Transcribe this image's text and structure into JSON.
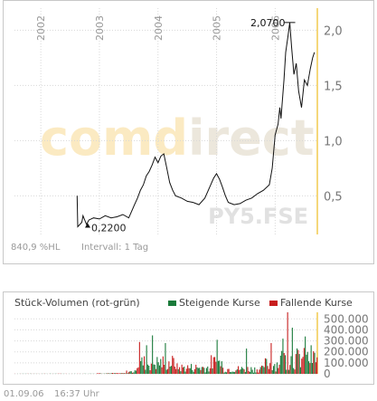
{
  "chart_data": [
    {
      "type": "line",
      "symbol_watermark": "PY5.FSE",
      "brand_watermark": "comdirect",
      "x_ticks": [
        "2002",
        "2003",
        "2004",
        "2005",
        "2006"
      ],
      "y_ticks": [
        0.5,
        1.0,
        1.5,
        2.0
      ],
      "y_tick_labels": [
        "0,5",
        "1,0",
        "1,5",
        "2,0"
      ],
      "ylim": [
        0.15,
        2.2
      ],
      "xlim": [
        2001.55,
        2006.72
      ],
      "min_label": "0,2200",
      "max_label": "2,0700",
      "min_point": {
        "x": 2002.8,
        "y": 0.22
      },
      "max_point": {
        "x": 2006.25,
        "y": 2.07
      },
      "series": [
        {
          "x": [
            2002.62,
            2002.63,
            2002.7,
            2002.72,
            2002.78,
            2002.82,
            2002.9,
            2003.0,
            2003.1,
            2003.2,
            2003.3,
            2003.4,
            2003.5,
            2003.55,
            2003.6,
            2003.65,
            2003.7,
            2003.75,
            2003.8,
            2003.85,
            2003.9,
            2003.95,
            2004.0,
            2004.05,
            2004.1,
            2004.15,
            2004.2,
            2004.25,
            2004.3,
            2004.4,
            2004.5,
            2004.6,
            2004.7,
            2004.8,
            2004.9,
            2004.95,
            2005.0,
            2005.05,
            2005.1,
            2005.15,
            2005.2,
            2005.3,
            2005.4,
            2005.5,
            2005.6,
            2005.7,
            2005.8,
            2005.9,
            2005.95,
            2006.0,
            2006.05,
            2006.08,
            2006.1,
            2006.15,
            2006.18,
            2006.22,
            2006.25,
            2006.28,
            2006.32,
            2006.36,
            2006.4,
            2006.45,
            2006.5,
            2006.55,
            2006.6,
            2006.64,
            2006.67
          ],
          "y": [
            0.5,
            0.22,
            0.26,
            0.32,
            0.24,
            0.28,
            0.3,
            0.29,
            0.32,
            0.3,
            0.31,
            0.33,
            0.3,
            0.36,
            0.42,
            0.48,
            0.55,
            0.6,
            0.68,
            0.72,
            0.78,
            0.85,
            0.8,
            0.86,
            0.88,
            0.75,
            0.62,
            0.55,
            0.5,
            0.48,
            0.45,
            0.44,
            0.42,
            0.48,
            0.6,
            0.66,
            0.7,
            0.65,
            0.58,
            0.5,
            0.44,
            0.42,
            0.43,
            0.46,
            0.48,
            0.52,
            0.55,
            0.6,
            0.75,
            1.05,
            1.15,
            1.3,
            1.2,
            1.55,
            1.8,
            1.95,
            2.07,
            1.85,
            1.6,
            1.7,
            1.45,
            1.3,
            1.55,
            1.5,
            1.65,
            1.75,
            1.8
          ]
        }
      ]
    },
    {
      "type": "bar",
      "title": "Stück-Volumen (rot-grün)",
      "legend": [
        {
          "name": "Steigende Kurse",
          "color": "#1a7a3a"
        },
        {
          "name": "Fallende Kurse",
          "color": "#c81e1e"
        }
      ],
      "y_ticks": [
        0,
        100000,
        200000,
        300000,
        400000,
        500000
      ],
      "y_tick_labels": [
        "0",
        "100.000",
        "200.000",
        "300.000",
        "400.000",
        "500.000"
      ],
      "ylim": [
        0,
        560000
      ],
      "xlim": [
        2001.55,
        2006.72
      ],
      "segments": [
        {
          "from": 2001.55,
          "to": 2002.95,
          "level": 1500
        },
        {
          "from": 2002.95,
          "to": 2003.45,
          "level": 8000
        },
        {
          "from": 2003.45,
          "to": 2003.6,
          "level": 30000
        },
        {
          "from": 2003.6,
          "to": 2004.3,
          "level": 160000
        },
        {
          "from": 2004.3,
          "to": 2004.9,
          "level": 90000
        },
        {
          "from": 2004.9,
          "to": 2005.1,
          "level": 160000
        },
        {
          "from": 2005.1,
          "to": 2005.8,
          "level": 70000
        },
        {
          "from": 2005.8,
          "to": 2006.05,
          "level": 140000
        },
        {
          "from": 2006.05,
          "to": 2006.72,
          "level": 220000
        }
      ],
      "peaks": [
        {
          "x": 2003.68,
          "value": 290000
        },
        {
          "x": 2003.8,
          "value": 260000
        },
        {
          "x": 2003.9,
          "value": 350000
        },
        {
          "x": 2004.05,
          "value": 300000
        },
        {
          "x": 2004.12,
          "value": 280000
        },
        {
          "x": 2004.95,
          "value": 260000
        },
        {
          "x": 2005.0,
          "value": 310000
        },
        {
          "x": 2005.5,
          "value": 230000
        },
        {
          "x": 2005.92,
          "value": 280000
        },
        {
          "x": 2006.12,
          "value": 320000
        },
        {
          "x": 2006.2,
          "value": 560000
        },
        {
          "x": 2006.28,
          "value": 420000
        },
        {
          "x": 2006.5,
          "value": 340000
        },
        {
          "x": 2006.6,
          "value": 260000
        }
      ]
    }
  ],
  "footer": {
    "performance": "840,9 %HL",
    "interval": "Intervall: 1 Tag",
    "date": "01.09.06",
    "time": "16:37 Uhr"
  }
}
